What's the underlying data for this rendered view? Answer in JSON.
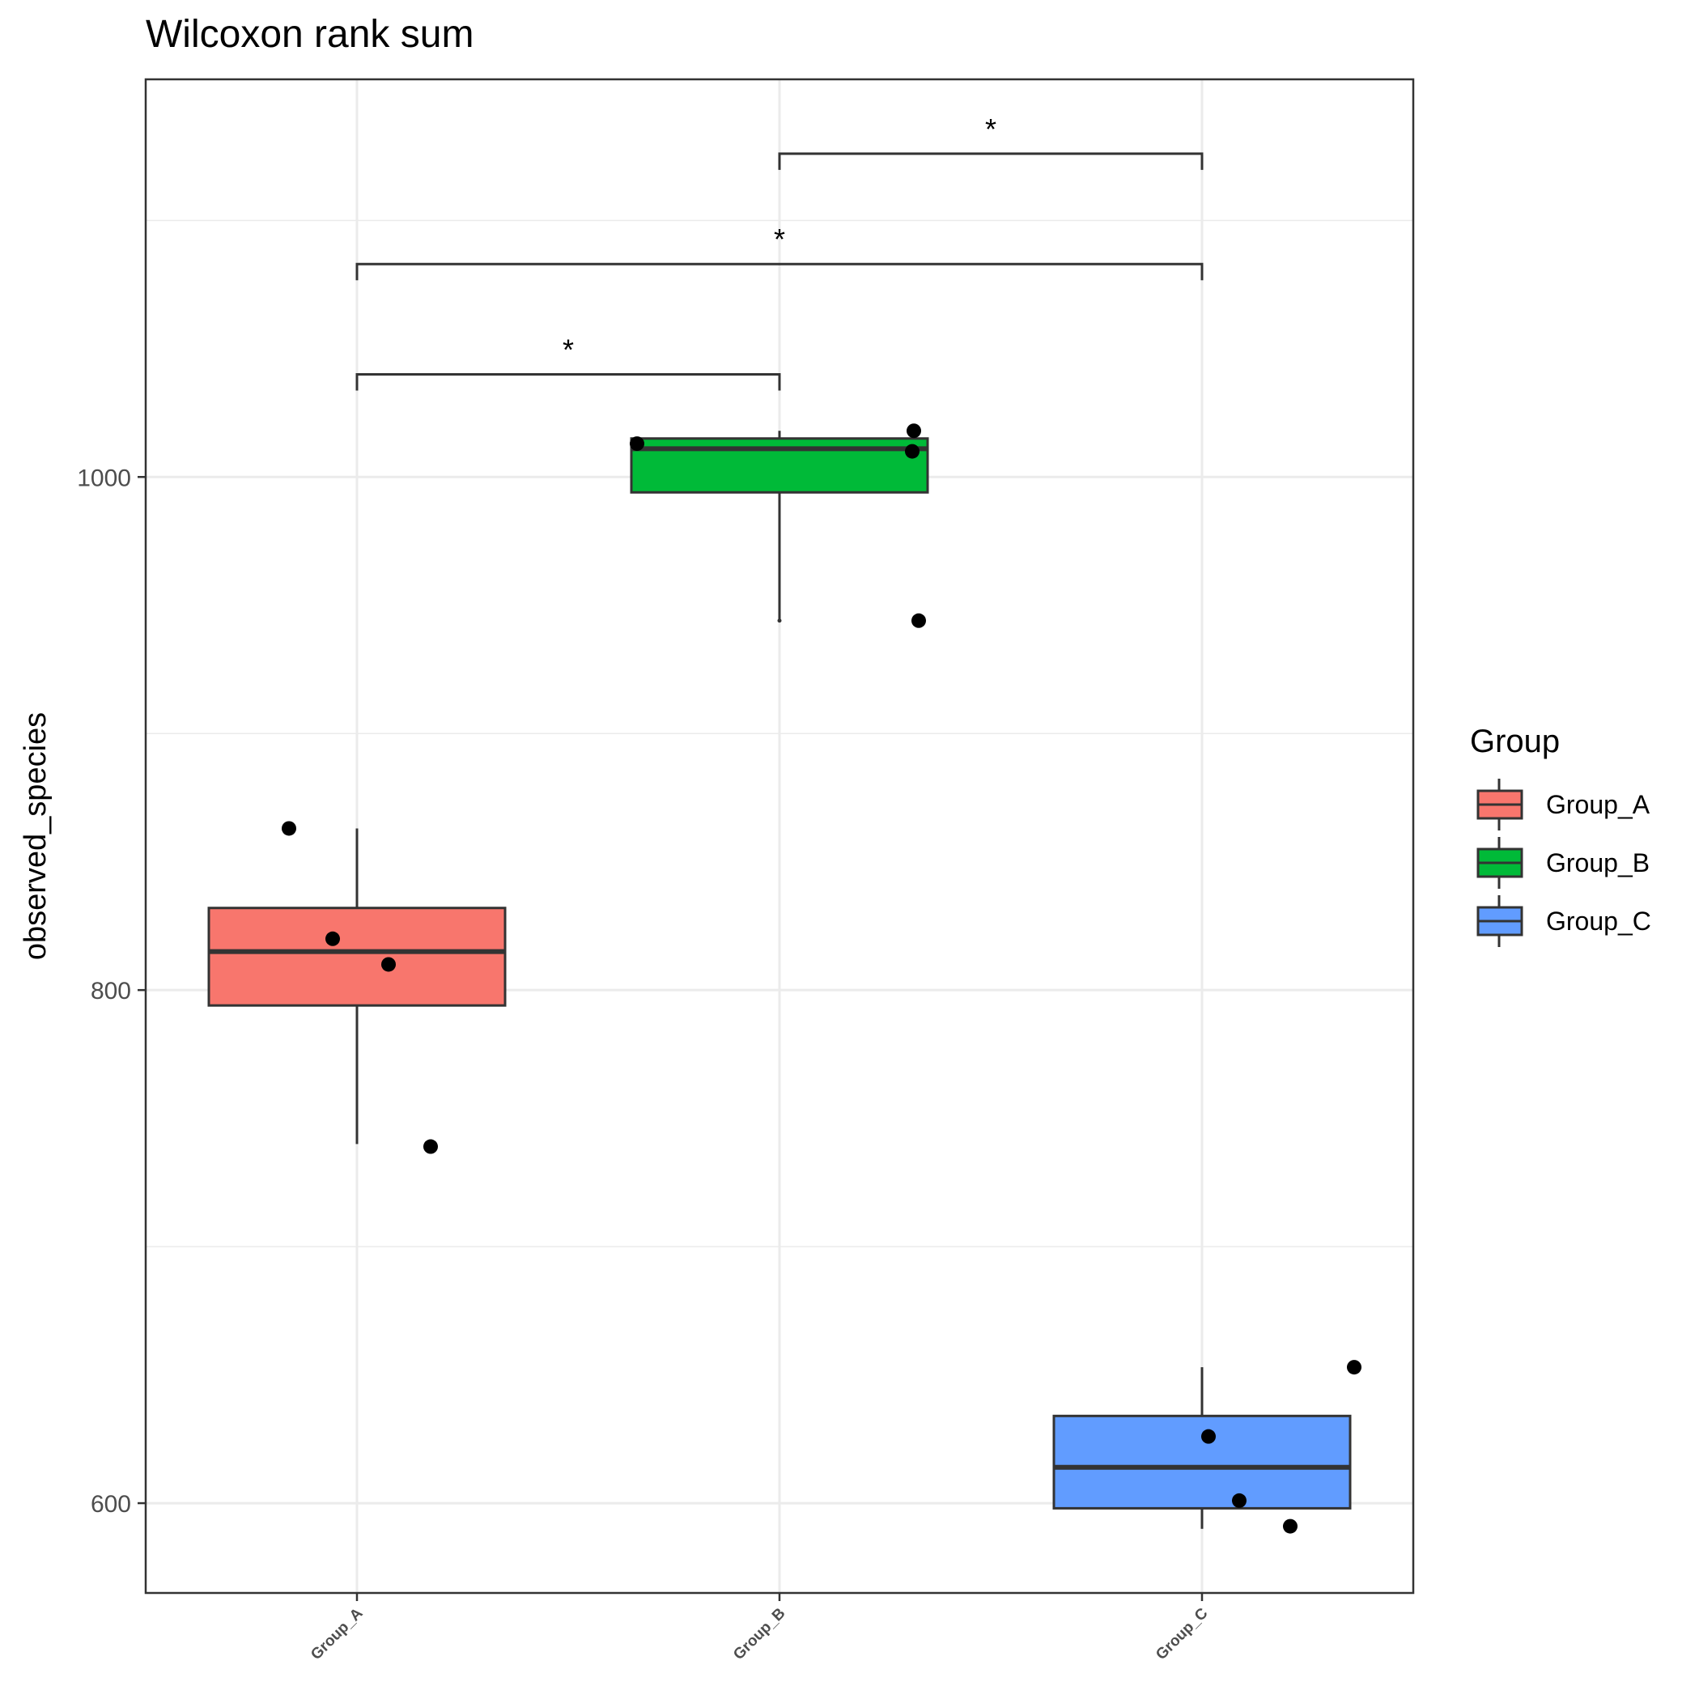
{
  "chart_data": {
    "type": "box",
    "title": "Wilcoxon rank sum",
    "xlabel": "",
    "ylabel": "observed_species",
    "ylim": [
      565,
      1155
    ],
    "yticks": [
      600,
      800,
      1000
    ],
    "grid": true,
    "categories": [
      "Group_A",
      "Group_B",
      "Group_C"
    ],
    "colors": {
      "Group_A": "#F8766D",
      "Group_B": "#00BA38",
      "Group_C": "#619CFF"
    },
    "boxes": [
      {
        "category": "Group_A",
        "lower_whisker": 740,
        "q1": 794,
        "median": 815,
        "q3": 832,
        "upper_whisker": 863
      },
      {
        "category": "Group_B",
        "lower_whisker": 944,
        "q1": 994,
        "median": 1011,
        "q3": 1015,
        "upper_whisker": 1018
      },
      {
        "category": "Group_C",
        "lower_whisker": 590,
        "q1": 598,
        "median": 614,
        "q3": 634,
        "upper_whisker": 653
      }
    ],
    "points": [
      {
        "category": "Group_A",
        "values": [
          863,
          820,
          810,
          739
        ]
      },
      {
        "category": "Group_B",
        "values": [
          1013,
          1018,
          1010,
          944
        ]
      },
      {
        "category": "Group_C",
        "values": [
          626,
          601,
          591,
          653
        ]
      }
    ],
    "significance": [
      {
        "from": "Group_A",
        "to": "Group_B",
        "label": "*",
        "y": 1040
      },
      {
        "from": "Group_A",
        "to": "Group_C",
        "label": "*",
        "y": 1083
      },
      {
        "from": "Group_B",
        "to": "Group_C",
        "label": "*",
        "y": 1126
      }
    ],
    "legend": {
      "title": "Group",
      "position": "right",
      "entries": [
        "Group_A",
        "Group_B",
        "Group_C"
      ]
    }
  }
}
